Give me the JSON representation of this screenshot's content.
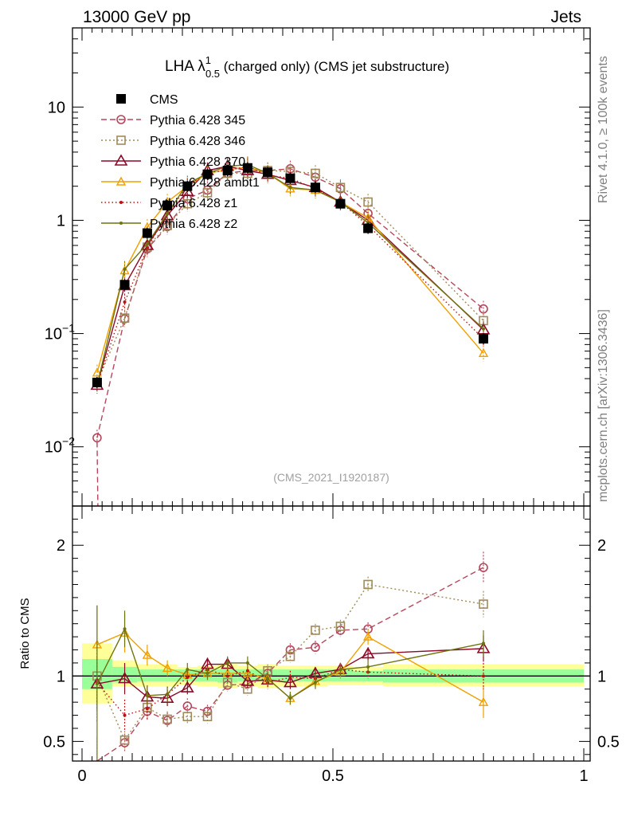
{
  "header": {
    "left": "13000 GeV pp",
    "right": "Jets"
  },
  "side_text": {
    "rivet": "Rivet 4.1.0, ≥ 100k events",
    "mcplots": "mcplots.cern.ch [arXiv:1306.3436]"
  },
  "title": {
    "main": "LHA λ",
    "sup": "1",
    "sub": "0.5",
    "rest": " (charged only) (CMS jet substructure)"
  },
  "watermark": "(CMS_2021_I1920187)",
  "ratio_ylabel": "Ratio to CMS",
  "colors": {
    "CMS": "#000000",
    "Pythia 6.428 345": "#b5465b",
    "Pythia 6.428 346": "#a08a5a",
    "Pythia 6.428 370": "#8b0a26",
    "Pythia 6.428 ambt1": "#f0a000",
    "Pythia 6.428 z1": "#c01010",
    "Pythia 6.428 z2": "#6e7410",
    "band_outer": "#ffff99",
    "band_inner": "#99ff99"
  },
  "chart_data": [
    {
      "type": "line",
      "panel": "main",
      "yscale": "log",
      "xlim": [
        0,
        1
      ],
      "ylim": [
        0.003,
        50
      ],
      "yticks": [
        {
          "v": 0.01,
          "base": "10",
          "exp": "−2"
        },
        {
          "v": 0.1,
          "base": "10",
          "exp": "−1"
        },
        {
          "v": 1,
          "base": "1",
          "exp": ""
        },
        {
          "v": 10,
          "base": "10",
          "exp": ""
        }
      ],
      "x": [
        0.03,
        0.085,
        0.13,
        0.17,
        0.21,
        0.25,
        0.29,
        0.33,
        0.37,
        0.415,
        0.465,
        0.515,
        0.57,
        0.8
      ],
      "series": [
        {
          "name": "CMS",
          "marker": "square-filled",
          "dash": "none",
          "values": [
            0.037,
            0.27,
            0.77,
            1.35,
            2.0,
            2.55,
            2.75,
            2.9,
            2.65,
            2.35,
            1.95,
            1.4,
            0.85,
            0.09
          ]
        },
        {
          "name": "Pythia 6.428 345",
          "marker": "circle",
          "dash": "7,4",
          "values": [
            0.012,
            0.135,
            0.56,
            0.88,
            1.55,
            1.85,
            2.6,
            2.75,
            2.75,
            2.85,
            2.4,
            1.9,
            1.15,
            0.165
          ]
        },
        {
          "name": "Pythia 6.428 346",
          "marker": "square",
          "dash": "2,3",
          "values": [
            0.037,
            0.137,
            0.58,
            0.9,
            1.4,
            1.75,
            2.6,
            2.6,
            2.75,
            2.7,
            2.6,
            1.95,
            1.45,
            0.13
          ]
        },
        {
          "name": "Pythia 6.428 370",
          "marker": "triangle",
          "dash": "none",
          "values": [
            0.035,
            0.265,
            0.6,
            1.1,
            1.8,
            2.75,
            3.0,
            2.75,
            2.55,
            2.25,
            1.95,
            1.45,
            1.0,
            0.108
          ]
        },
        {
          "name": "Pythia 6.428 ambt1",
          "marker": "triangle-small",
          "dash": "none",
          "values": [
            0.045,
            0.36,
            0.87,
            1.45,
            2.0,
            2.6,
            2.8,
            2.95,
            2.6,
            1.9,
            1.85,
            1.45,
            1.05,
            0.067
          ]
        },
        {
          "name": "Pythia 6.428 z1",
          "marker": "dot",
          "dash": "1.5,3",
          "values": [
            0.035,
            0.19,
            0.57,
            1.15,
            2.0,
            2.65,
            2.75,
            3.0,
            2.5,
            2.35,
            1.9,
            1.45,
            0.9,
            0.09
          ]
        },
        {
          "name": "Pythia 6.428 z2",
          "marker": "dot",
          "dash": "none",
          "values": [
            0.035,
            0.37,
            0.62,
            1.15,
            2.1,
            2.6,
            3.0,
            3.1,
            2.6,
            1.95,
            1.85,
            1.45,
            0.95,
            0.11
          ]
        }
      ]
    },
    {
      "type": "line",
      "panel": "ratio",
      "xlim": [
        0,
        1
      ],
      "ylim": [
        0.35,
        2.3
      ],
      "yticks": [
        0.5,
        1,
        2
      ],
      "xticks": [
        0,
        0.5,
        1
      ],
      "x": [
        0.03,
        0.085,
        0.13,
        0.17,
        0.21,
        0.25,
        0.29,
        0.33,
        0.37,
        0.415,
        0.465,
        0.515,
        0.57,
        0.8
      ],
      "bands": {
        "outer": [
          {
            "x0": 0.0,
            "x1": 0.06,
            "lo": 0.79,
            "hi": 1.25
          },
          {
            "x0": 0.06,
            "x1": 0.11,
            "lo": 0.92,
            "hi": 1.12
          },
          {
            "x0": 0.11,
            "x1": 0.19,
            "lo": 0.92,
            "hi": 1.09
          },
          {
            "x0": 0.19,
            "x1": 0.23,
            "lo": 0.93,
            "hi": 1.07
          },
          {
            "x0": 0.23,
            "x1": 0.27,
            "lo": 0.92,
            "hi": 1.08
          },
          {
            "x0": 0.27,
            "x1": 0.31,
            "lo": 0.91,
            "hi": 1.09
          },
          {
            "x0": 0.31,
            "x1": 0.35,
            "lo": 0.92,
            "hi": 1.08
          },
          {
            "x0": 0.35,
            "x1": 0.39,
            "lo": 0.91,
            "hi": 1.09
          },
          {
            "x0": 0.39,
            "x1": 0.44,
            "lo": 0.92,
            "hi": 1.08
          },
          {
            "x0": 0.44,
            "x1": 0.49,
            "lo": 0.92,
            "hi": 1.08
          },
          {
            "x0": 0.49,
            "x1": 0.54,
            "lo": 0.93,
            "hi": 1.08
          },
          {
            "x0": 0.54,
            "x1": 0.6,
            "lo": 0.93,
            "hi": 1.07
          },
          {
            "x0": 0.6,
            "x1": 1.0,
            "lo": 0.92,
            "hi": 1.09
          }
        ],
        "inner": [
          {
            "x0": 0.0,
            "x1": 0.06,
            "lo": 0.9,
            "hi": 1.13
          },
          {
            "x0": 0.06,
            "x1": 0.11,
            "lo": 0.95,
            "hi": 1.07
          },
          {
            "x0": 0.11,
            "x1": 0.19,
            "lo": 0.96,
            "hi": 1.05
          },
          {
            "x0": 0.19,
            "x1": 0.23,
            "lo": 0.96,
            "hi": 1.05
          },
          {
            "x0": 0.23,
            "x1": 0.27,
            "lo": 0.96,
            "hi": 1.05
          },
          {
            "x0": 0.27,
            "x1": 0.31,
            "lo": 0.95,
            "hi": 1.05
          },
          {
            "x0": 0.31,
            "x1": 0.35,
            "lo": 0.96,
            "hi": 1.05
          },
          {
            "x0": 0.35,
            "x1": 0.39,
            "lo": 0.96,
            "hi": 1.05
          },
          {
            "x0": 0.39,
            "x1": 0.44,
            "lo": 0.96,
            "hi": 1.05
          },
          {
            "x0": 0.44,
            "x1": 0.49,
            "lo": 0.96,
            "hi": 1.05
          },
          {
            "x0": 0.49,
            "x1": 0.54,
            "lo": 0.96,
            "hi": 1.05
          },
          {
            "x0": 0.54,
            "x1": 0.6,
            "lo": 0.96,
            "hi": 1.04
          },
          {
            "x0": 0.6,
            "x1": 1.0,
            "lo": 0.95,
            "hi": 1.05
          }
        ]
      },
      "series": [
        {
          "name": "Pythia 6.428 345",
          "values": [
            0.33,
            0.49,
            0.73,
            0.66,
            0.77,
            0.73,
            0.93,
            0.94,
            1.02,
            1.2,
            1.22,
            1.35,
            1.36,
            1.83
          ],
          "err": [
            0.2,
            0.07,
            0.07,
            0.06,
            0.06,
            0.05,
            0.05,
            0.05,
            0.05,
            0.05,
            0.05,
            0.05,
            0.05,
            0.12
          ]
        },
        {
          "name": "Pythia 6.428 346",
          "values": [
            1.0,
            0.51,
            0.76,
            0.67,
            0.69,
            0.69,
            0.95,
            0.9,
            1.04,
            1.15,
            1.35,
            1.38,
            1.7,
            1.55
          ],
          "err": [
            0.2,
            0.07,
            0.07,
            0.06,
            0.06,
            0.05,
            0.05,
            0.05,
            0.05,
            0.05,
            0.05,
            0.05,
            0.06,
            0.1
          ]
        },
        {
          "name": "Pythia 6.428 370",
          "values": [
            0.94,
            0.98,
            0.84,
            0.83,
            0.91,
            1.09,
            1.09,
            0.96,
            0.97,
            0.95,
            1.02,
            1.05,
            1.17,
            1.21
          ],
          "err": [
            0.2,
            0.12,
            0.08,
            0.06,
            0.05,
            0.05,
            0.05,
            0.05,
            0.05,
            0.05,
            0.05,
            0.05,
            0.05,
            0.1
          ]
        },
        {
          "name": "Pythia 6.428 ambt1",
          "values": [
            1.24,
            1.33,
            1.16,
            1.06,
            1.01,
            1.02,
            1.02,
            1.02,
            0.98,
            0.83,
            0.96,
            1.03,
            1.3,
            0.8
          ],
          "err": [
            0.3,
            0.15,
            0.08,
            0.06,
            0.05,
            0.05,
            0.05,
            0.05,
            0.05,
            0.05,
            0.05,
            0.05,
            0.06,
            0.12
          ]
        },
        {
          "name": "Pythia 6.428 z1",
          "values": [
            0.95,
            0.7,
            0.75,
            0.86,
            0.99,
            1.05,
            1.0,
            1.04,
            0.95,
            0.99,
            0.98,
            1.05,
            1.03,
            1.0
          ],
          "err": [
            0.3,
            0.12,
            0.08,
            0.06,
            0.05,
            0.05,
            0.05,
            0.05,
            0.05,
            0.05,
            0.05,
            0.05,
            0.05,
            0.1
          ]
        },
        {
          "name": "Pythia 6.428 z2",
          "values": [
            0.94,
            1.36,
            0.85,
            0.86,
            1.05,
            1.02,
            1.1,
            1.1,
            0.98,
            0.83,
            0.95,
            1.05,
            1.07,
            1.25
          ],
          "err": [
            0.6,
            0.14,
            0.08,
            0.06,
            0.05,
            0.05,
            0.05,
            0.05,
            0.05,
            0.05,
            0.05,
            0.05,
            0.05,
            0.1
          ]
        }
      ]
    }
  ]
}
